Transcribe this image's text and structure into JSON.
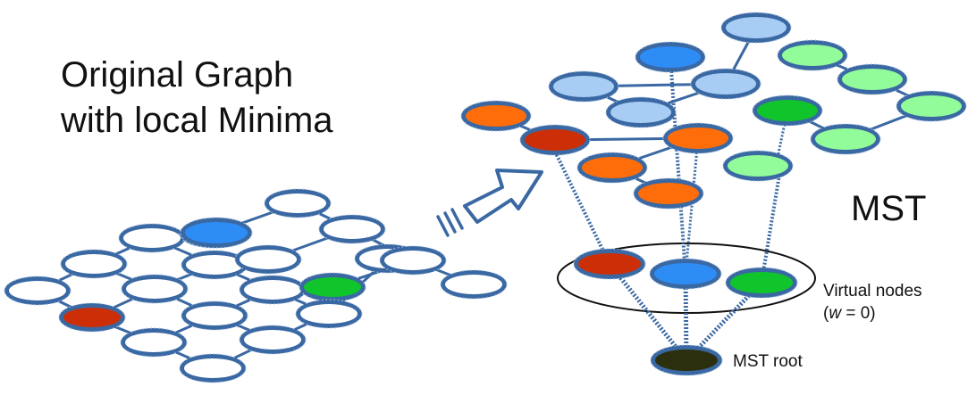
{
  "left_title": {
    "line1": "Original Graph",
    "line2": "with local Minima"
  },
  "mst_label": "MST",
  "virtual_nodes_label": {
    "line1": "Virtual nodes",
    "w_symbol": "w",
    "w_eq": " = 0",
    "open_paren": "(",
    "close_paren": ")"
  },
  "mst_root_label": "MST root",
  "colors": {
    "node_outline": "#3a68a3",
    "empty_node": "#ffffff",
    "red_minimum": "#cc2f08",
    "blue_minimum": "#2e8cf5",
    "green_minimum": "#10c52c",
    "light_blue_region": "#a7cdf5",
    "orange_region": "#fe6d09",
    "light_green_region": "#92fb9a",
    "root_node": "#2c2f0d",
    "arrow_fill": "#ffffff",
    "arrow_outline": "#3a68a3"
  }
}
